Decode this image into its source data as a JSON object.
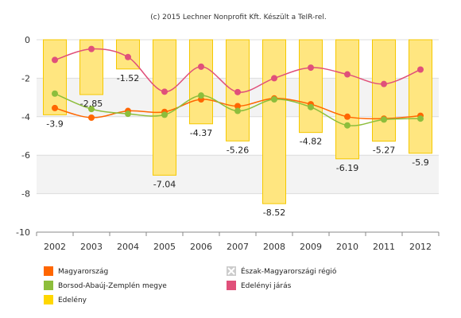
{
  "credit": "(c) 2015 Lechner Nonprofit Kft. Készült a TeIR-rel.",
  "chart_data": {
    "type": "bar+line",
    "categories": [
      "2002",
      "2003",
      "2004",
      "2005",
      "2006",
      "2007",
      "2008",
      "2009",
      "2010",
      "2011",
      "2012"
    ],
    "ylim": [
      -10,
      0
    ],
    "yticks": [
      0,
      -2,
      -4,
      -6,
      -8,
      -10
    ],
    "grid": true,
    "legend_position": "bottom",
    "bar_series": {
      "name": "Edelény",
      "color": "#FFD700",
      "values": [
        -3.9,
        -2.85,
        -1.52,
        -7.04,
        -4.37,
        -5.26,
        -8.52,
        -4.82,
        -6.19,
        -5.27,
        -5.9
      ],
      "labels": [
        "-3.9",
        "-2.85",
        "-1.52",
        "-7.04",
        "-4.37",
        "-5.26",
        "-8.52",
        "-4.82",
        "-6.19",
        "-5.27",
        "-5.9"
      ]
    },
    "line_series": [
      {
        "name": "Magyarország",
        "color": "#FF6600",
        "values": [
          -3.55,
          -4.05,
          -3.7,
          -3.75,
          -3.1,
          -3.45,
          -3.05,
          -3.35,
          -4.0,
          -4.1,
          -3.95
        ]
      },
      {
        "name": "Borsod-Abaúj-Zemplén megye",
        "color": "#8DBE3C",
        "values": [
          -2.8,
          -3.6,
          -3.85,
          -3.9,
          -2.9,
          -3.7,
          -3.1,
          -3.5,
          -4.45,
          -4.15,
          -4.1
        ]
      },
      {
        "name": "Edelényi járás",
        "color": "#E0507A",
        "values": [
          -1.05,
          -0.48,
          -0.9,
          -2.7,
          -1.4,
          -2.72,
          -2.0,
          -1.45,
          -1.8,
          -2.3,
          -1.55
        ]
      }
    ],
    "legend": [
      {
        "name": "Magyarország",
        "color": "#FF6600",
        "disabled": false
      },
      {
        "name": "Észak-Magyarországi régió",
        "color": "#bbbbbb",
        "disabled": true
      },
      {
        "name": "Borsod-Abaúj-Zemplén megye",
        "color": "#8DBE3C",
        "disabled": false
      },
      {
        "name": "Edelényi járás",
        "color": "#E0507A",
        "disabled": false
      },
      {
        "name": "Edelény",
        "color": "#FFD700",
        "disabled": false
      }
    ]
  }
}
